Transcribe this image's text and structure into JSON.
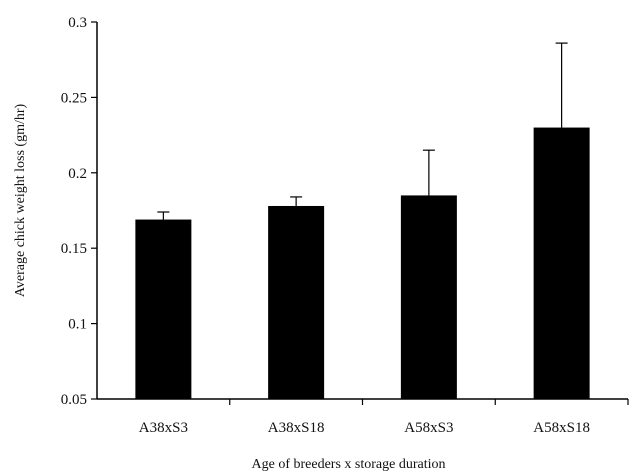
{
  "chart_data": {
    "type": "bar",
    "title": "",
    "xlabel": "Age of breeders x storage duration",
    "ylabel": "Average chick weight loss (gm/hr)",
    "categories": [
      "A38xS3",
      "A38xS18",
      "A58xS3",
      "A58xS18"
    ],
    "values": [
      0.169,
      0.178,
      0.185,
      0.23
    ],
    "error_upper": [
      0.005,
      0.006,
      0.03,
      0.056
    ],
    "ylim": [
      0.05,
      0.3
    ],
    "yticks": [
      0.05,
      0.1,
      0.15,
      0.2,
      0.25,
      0.3
    ],
    "ytick_labels": [
      "0.05",
      "0.1",
      "0.15",
      "0.2",
      "0.25",
      "0.3"
    ],
    "grid": false,
    "legend": "none",
    "bar_color": "#000000"
  }
}
